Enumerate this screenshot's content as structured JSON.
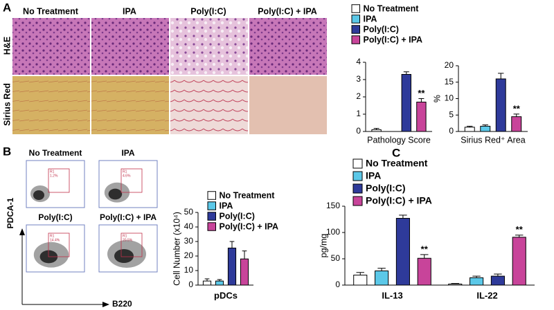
{
  "panels": {
    "a": "A",
    "b": "B",
    "c": "C"
  },
  "micrographs": {
    "columns": [
      "No Treatment",
      "IPA",
      "Poly(I:C)",
      "Poly(I:C) + IPA"
    ],
    "rows": [
      "H&E",
      "Sirius Red"
    ]
  },
  "flow": {
    "plots": [
      {
        "title": "No Treatment",
        "gate": "R1",
        "percent": "1.2%"
      },
      {
        "title": "IPA",
        "gate": "R1",
        "percent": "4.6%"
      },
      {
        "title": "Poly(I:C)",
        "gate": "R1",
        "percent": "14.4%"
      },
      {
        "title": "Poly(I:C) + IPA",
        "gate": "R1",
        "percent": "20.5%"
      }
    ],
    "y_label": "PDCA-1",
    "x_label": "B220"
  },
  "chart_data": [
    {
      "type": "bar",
      "x_label": "Pathology Score",
      "ylim": [
        0,
        4
      ],
      "yticks": [
        0,
        1,
        2,
        3,
        4
      ],
      "series": [
        {
          "name": "No Treatment",
          "color": "#ffffff",
          "values": [
            0.1
          ],
          "errors": [
            0.08
          ]
        },
        {
          "name": "IPA",
          "color": "#5bc8e8",
          "values": [
            0
          ],
          "errors": [
            0
          ]
        },
        {
          "name": "Poly(I:C)",
          "color": "#2e3a9a",
          "values": [
            3.3
          ],
          "errors": [
            0.15
          ]
        },
        {
          "name": "Poly(I:C) + IPA",
          "color": "#c8449a",
          "values": [
            1.7
          ],
          "errors": [
            0.2
          ]
        }
      ],
      "annotations": [
        "**"
      ]
    },
    {
      "type": "bar",
      "x_label": "Sirius Red⁺ Area",
      "y_label": "%",
      "ylim": [
        0,
        20
      ],
      "yticks": [
        0,
        5,
        10,
        15,
        20
      ],
      "series": [
        {
          "color": "#ffffff",
          "values": [
            1.3
          ],
          "errors": [
            0.3
          ]
        },
        {
          "color": "#5bc8e8",
          "values": [
            1.6
          ],
          "errors": [
            0.4
          ]
        },
        {
          "color": "#2e3a9a",
          "values": [
            16
          ],
          "errors": [
            1.7
          ]
        },
        {
          "color": "#c8449a",
          "values": [
            4.5
          ],
          "errors": [
            0.8
          ]
        }
      ],
      "annotations": [
        "**"
      ]
    },
    {
      "type": "bar",
      "categories": [
        "pDCs"
      ],
      "y_label": "Cell Number (x10⁴)",
      "ylim": [
        0,
        50
      ],
      "yticks": [
        0,
        10,
        20,
        30,
        40,
        50
      ],
      "series": [
        {
          "name": "No Treatment",
          "color": "#ffffff",
          "values": [
            2.8
          ],
          "errors": [
            1.5
          ]
        },
        {
          "name": "IPA",
          "color": "#5bc8e8",
          "values": [
            2.8
          ],
          "errors": [
            1
          ]
        },
        {
          "name": "Poly(I:C)",
          "color": "#2e3a9a",
          "values": [
            25.5
          ],
          "errors": [
            4.5
          ]
        },
        {
          "name": "Poly(I:C) + IPA",
          "color": "#c8449a",
          "values": [
            18
          ],
          "errors": [
            5.5
          ]
        }
      ]
    },
    {
      "type": "bar",
      "categories": [
        "IL-13",
        "IL-22"
      ],
      "y_label": "pg/mg",
      "ylim": [
        0,
        150
      ],
      "yticks": [
        0,
        50,
        100,
        150
      ],
      "series": [
        {
          "name": "No Treatment",
          "color": "#ffffff",
          "values": [
            19,
            2
          ],
          "errors": [
            5,
            1
          ]
        },
        {
          "name": "IPA",
          "color": "#5bc8e8",
          "values": [
            27,
            14
          ],
          "errors": [
            5,
            3
          ]
        },
        {
          "name": "Poly(I:C)",
          "color": "#2e3a9a",
          "values": [
            127,
            17
          ],
          "errors": [
            6,
            4
          ]
        },
        {
          "name": "Poly(I:C) + IPA",
          "color": "#c8449a",
          "values": [
            51,
            91
          ],
          "errors": [
            7,
            4
          ]
        }
      ],
      "annotations": [
        "**",
        "**"
      ]
    }
  ]
}
